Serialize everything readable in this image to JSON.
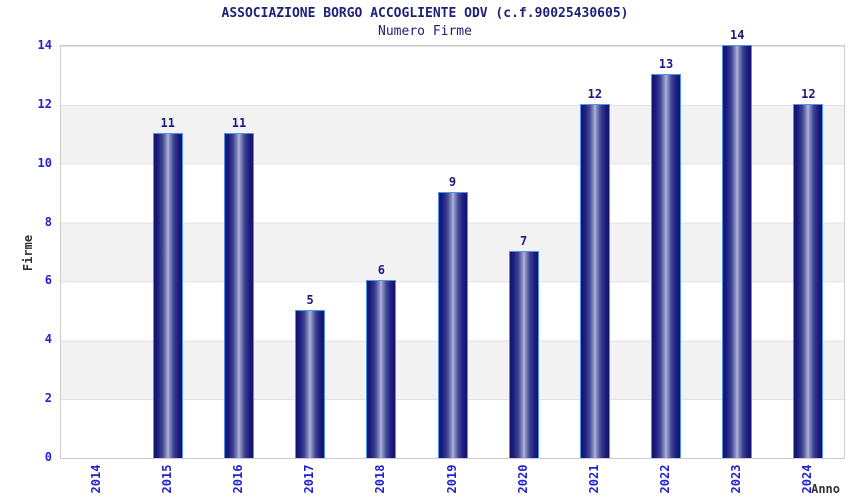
{
  "header": {
    "title": "ASSOCIAZIONE BORGO ACCOGLIENTE ODV (c.f.90025430605)",
    "subtitle": "Numero Firme"
  },
  "axes": {
    "y_label": "Firme",
    "x_label": "Anno"
  },
  "chart_data": {
    "type": "bar",
    "title": "ASSOCIAZIONE BORGO ACCOGLIENTE ODV (c.f.90025430605)",
    "subtitle": "Numero Firme",
    "xlabel": "Anno",
    "ylabel": "Firme",
    "categories": [
      "2014",
      "2015",
      "2016",
      "2017",
      "2018",
      "2019",
      "2020",
      "2021",
      "2022",
      "2023",
      "2024"
    ],
    "values": [
      0,
      11,
      11,
      5,
      6,
      9,
      7,
      12,
      13,
      14,
      12
    ],
    "y_ticks": [
      0,
      2,
      4,
      6,
      8,
      10,
      12,
      14
    ],
    "ylim": [
      0,
      14
    ],
    "grid": true,
    "legend_position": "none",
    "value_labels_shown": true,
    "colors": {
      "bar_dark": "#14146e",
      "bar_highlight": "#aeb3d8",
      "bar_border": "#4d94eb",
      "tick_label": "#2222cc",
      "title_text": "#20207a",
      "value_label": "#1a1a7e",
      "axis_title_text": "#333333",
      "band_gray": "#f2f2f2",
      "plot_border": "#cccccc"
    }
  }
}
